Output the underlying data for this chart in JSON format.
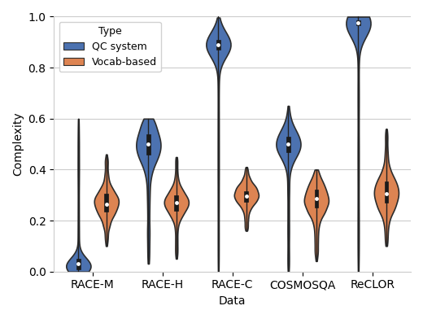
{
  "datasets": [
    "RACE-M",
    "RACE-H",
    "RACE-C",
    "COSMOSQA",
    "ReCLOR"
  ],
  "qc_system": {
    "RACE-M": {
      "median": 0.03,
      "q1": 0.01,
      "q3": 0.05,
      "whislo": 0.0,
      "whishi": 0.6,
      "peak": 0.02,
      "spread": 0.015
    },
    "RACE-H": {
      "median": 0.5,
      "q1": 0.46,
      "q3": 0.54,
      "whislo": 0.03,
      "whishi": 0.6,
      "peak": 0.5,
      "spread": 0.06
    },
    "RACE-C": {
      "median": 0.89,
      "q1": 0.87,
      "q3": 0.91,
      "whislo": 0.0,
      "whishi": 1.0,
      "peak": 0.89,
      "spread": 0.02
    },
    "COSMOSQA": {
      "median": 0.5,
      "q1": 0.47,
      "q3": 0.53,
      "whislo": 0.0,
      "whishi": 0.65,
      "peak": 0.5,
      "spread": 0.045
    },
    "ReCLOR": {
      "median": 0.975,
      "q1": 0.965,
      "q3": 0.985,
      "whislo": 0.0,
      "whishi": 1.0,
      "peak": 0.975,
      "spread": 0.015
    }
  },
  "vocab_based": {
    "RACE-M": {
      "median": 0.265,
      "q1": 0.235,
      "q3": 0.305,
      "whislo": 0.1,
      "whishi": 0.46,
      "peak": 0.27,
      "spread": 0.045
    },
    "RACE-H": {
      "median": 0.27,
      "q1": 0.24,
      "q3": 0.3,
      "whislo": 0.05,
      "whishi": 0.45,
      "peak": 0.27,
      "spread": 0.04
    },
    "RACE-C": {
      "median": 0.295,
      "q1": 0.275,
      "q3": 0.315,
      "whislo": 0.16,
      "whishi": 0.41,
      "peak": 0.3,
      "spread": 0.035
    },
    "COSMOSQA": {
      "median": 0.285,
      "q1": 0.25,
      "q3": 0.32,
      "whislo": 0.04,
      "whishi": 0.4,
      "peak": 0.285,
      "spread": 0.05
    },
    "ReCLOR": {
      "median": 0.305,
      "q1": 0.27,
      "q3": 0.355,
      "whislo": 0.1,
      "whishi": 0.56,
      "peak": 0.305,
      "spread": 0.055
    }
  },
  "qc_color": "#4C72B0",
  "vocab_color": "#DD8452",
  "ylabel": "Complexity",
  "xlabel": "Data",
  "legend_title": "Type",
  "legend_labels": [
    "QC system",
    "Vocab-based"
  ],
  "ylim": [
    0.0,
    1.0
  ],
  "figsize": [
    5.2,
    3.92
  ],
  "dpi": 100
}
